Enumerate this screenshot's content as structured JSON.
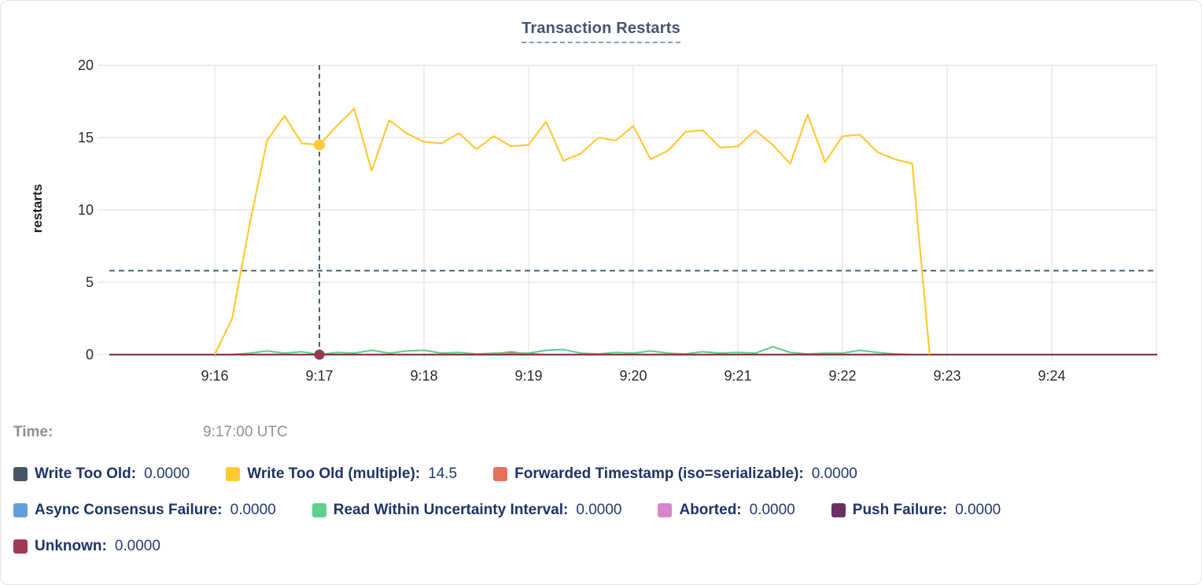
{
  "chart_data": {
    "type": "line",
    "title": "Transaction Restarts",
    "ylabel": "restarts",
    "ylim": [
      0,
      20
    ],
    "grid": true,
    "y_tick_values": [
      0,
      5,
      10,
      15,
      20
    ],
    "y_tick_labels": [
      "0",
      "5",
      "10",
      "15",
      "20"
    ],
    "x_tick_labels": [
      "9:16",
      "9:17",
      "9:18",
      "9:19",
      "9:20",
      "9:21",
      "9:22",
      "9:23",
      "9:24"
    ],
    "start_time": "9:16:00",
    "end_time": "9:22:50",
    "interval_seconds": 10,
    "hover": {
      "time_label": "9:17:00 UTC",
      "x_tick": "9:17",
      "x_index": 1,
      "hline_value": 5.8,
      "points": [
        {
          "series": "Write Too Old (multiple)",
          "value": 14.5,
          "color": "#ffc839",
          "radius": 7
        },
        {
          "series": "Unknown",
          "value": 0,
          "color": "#963a50",
          "radius": 6.5
        }
      ]
    },
    "series": [
      {
        "name": "Write Too Old",
        "color": "#475568",
        "flat_value": 0
      },
      {
        "name": "Write Too Old (multiple)",
        "color": "#ffc937",
        "width": 2.2,
        "values": [
          0,
          2.5,
          9,
          14.8,
          16.5,
          14.6,
          14.5,
          15.8,
          17.0,
          12.7,
          16.2,
          15.3,
          14.7,
          14.6,
          15.3,
          14.2,
          15.1,
          14.4,
          14.5,
          16.1,
          13.4,
          13.9,
          15.0,
          14.8,
          15.8,
          13.5,
          14.1,
          15.4,
          15.5,
          14.3,
          14.4,
          15.5,
          14.5,
          13.2,
          16.6,
          13.3,
          15.1,
          15.2,
          14.0,
          13.5,
          13.2,
          0
        ]
      },
      {
        "name": "Forwarded Timestamp (iso=serializable)",
        "color": "#db4c4c",
        "width": 2,
        "values": [
          0,
          0,
          0,
          0,
          0,
          0,
          0,
          0,
          0,
          0,
          0,
          0,
          0,
          0,
          0,
          0,
          0.05,
          0.18,
          0.05,
          0,
          0,
          0,
          0,
          0,
          0,
          0,
          0,
          0,
          0,
          0,
          0,
          0,
          0,
          0,
          0,
          0,
          0,
          0,
          0,
          0,
          0,
          0
        ]
      },
      {
        "name": "Async Consensus Failure",
        "color": "#61a0da",
        "flat_value": 0
      },
      {
        "name": "Read Within Uncertainty Interval",
        "color": "#61c988",
        "width": 2,
        "values": [
          0,
          0,
          0.1,
          0.25,
          0.1,
          0.2,
          0,
          0.15,
          0.1,
          0.3,
          0.1,
          0.25,
          0.3,
          0.1,
          0.15,
          0.05,
          0.1,
          0.1,
          0.1,
          0.3,
          0.35,
          0.1,
          0.05,
          0.15,
          0.1,
          0.25,
          0.1,
          0.05,
          0.2,
          0.1,
          0.15,
          0.1,
          0.55,
          0.15,
          0.05,
          0.1,
          0.1,
          0.3,
          0.15,
          0.05,
          0,
          0
        ]
      },
      {
        "name": "Aborted",
        "color": "#d787c8",
        "flat_value": 0
      },
      {
        "name": "Push Failure",
        "color": "#6b2f62",
        "flat_value": 0
      },
      {
        "name": "Unknown",
        "color": "#8f3345",
        "width": 2.2,
        "flat_value": 0
      }
    ],
    "colors": {
      "gridline": "#e9e9e9",
      "crosshair": "#41677f"
    }
  },
  "time_row": {
    "label": "Time:",
    "value": "9:17:00 UTC"
  },
  "legend": {
    "items": [
      {
        "label": "Write Too Old:",
        "value": "0.0000",
        "color": "#475568"
      },
      {
        "label": "Write Too Old (multiple):",
        "value": "14.5",
        "color": "#ffcb30"
      },
      {
        "label": "Forwarded Timestamp (iso=serializable):",
        "value": "0.0000",
        "color": "#e8705f"
      },
      {
        "label": "Async Consensus Failure:",
        "value": "0.0000",
        "color": "#61a0da"
      },
      {
        "label": "Read Within Uncertainty Interval:",
        "value": "0.0000",
        "color": "#5fd08c"
      },
      {
        "label": "Aborted:",
        "value": "0.0000",
        "color": "#d787c8"
      },
      {
        "label": "Push Failure:",
        "value": "0.0000",
        "color": "#6b2f62"
      },
      {
        "label": "Unknown:",
        "value": "0.0000",
        "color": "#a23b55"
      }
    ]
  }
}
